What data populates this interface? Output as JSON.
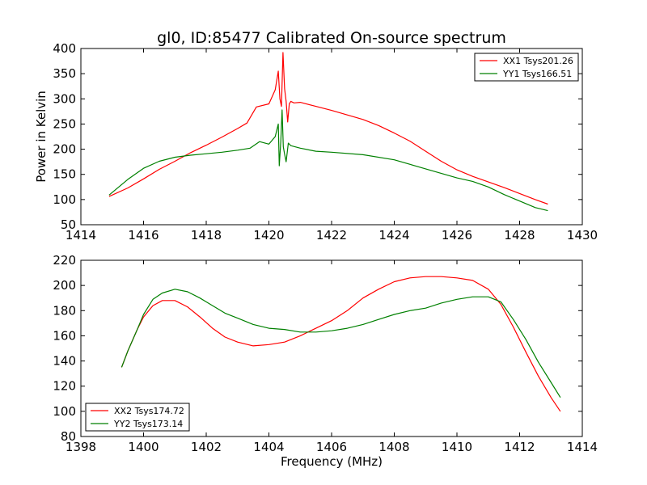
{
  "chart_data": [
    {
      "type": "line",
      "title": "gl0, ID:85477 Calibrated On-source spectrum",
      "xlabel": "",
      "ylabel": "Power in Kelvin",
      "xlim": [
        1414,
        1430
      ],
      "ylim": [
        50,
        400
      ],
      "xticks": [
        1414,
        1416,
        1418,
        1420,
        1422,
        1424,
        1426,
        1428,
        1430
      ],
      "yticks": [
        50,
        100,
        150,
        200,
        250,
        300,
        350,
        400
      ],
      "legend_position": "top-right",
      "series": [
        {
          "name": "XX1 Tsys201.26",
          "color": "#ff0000",
          "x": [
            1414.9,
            1415.5,
            1416.0,
            1416.5,
            1417.0,
            1417.5,
            1418.0,
            1418.5,
            1419.0,
            1419.3,
            1419.6,
            1420.0,
            1420.2,
            1420.3,
            1420.35,
            1420.4,
            1420.45,
            1420.5,
            1420.55,
            1420.6,
            1420.65,
            1420.7,
            1420.8,
            1421.0,
            1421.5,
            1422.0,
            1422.5,
            1423.0,
            1423.5,
            1424.0,
            1424.5,
            1425.0,
            1425.5,
            1426.0,
            1426.5,
            1427.0,
            1427.5,
            1428.0,
            1428.5,
            1428.9
          ],
          "y": [
            106,
            123,
            141,
            160,
            176,
            193,
            208,
            224,
            241,
            252,
            284,
            290,
            318,
            355,
            300,
            285,
            392,
            320,
            295,
            254,
            290,
            295,
            292,
            293,
            285,
            277,
            268,
            259,
            247,
            232,
            216,
            196,
            176,
            159,
            146,
            135,
            124,
            112,
            100,
            91
          ]
        },
        {
          "name": "YY1 Tsys166.51",
          "color": "#008000",
          "x": [
            1414.9,
            1415.5,
            1416.0,
            1416.5,
            1417.0,
            1417.5,
            1418.0,
            1418.5,
            1419.0,
            1419.4,
            1419.7,
            1420.0,
            1420.2,
            1420.3,
            1420.33,
            1420.38,
            1420.42,
            1420.46,
            1420.5,
            1420.55,
            1420.62,
            1420.7,
            1421.0,
            1421.5,
            1422.0,
            1423.0,
            1424.0,
            1425.0,
            1426.0,
            1426.5,
            1427.0,
            1427.5,
            1428.0,
            1428.5,
            1428.9
          ],
          "y": [
            109,
            140,
            162,
            176,
            184,
            188,
            191,
            194,
            198,
            202,
            215,
            210,
            225,
            250,
            167,
            215,
            278,
            205,
            190,
            175,
            212,
            207,
            202,
            196,
            194,
            189,
            179,
            161,
            143,
            136,
            125,
            110,
            97,
            84,
            78
          ]
        }
      ]
    },
    {
      "type": "line",
      "title": "",
      "xlabel": "Frequency (MHz)",
      "ylabel": "",
      "xlim": [
        1398,
        1414
      ],
      "ylim": [
        80,
        220
      ],
      "xticks": [
        1398,
        1400,
        1402,
        1404,
        1406,
        1408,
        1410,
        1412,
        1414
      ],
      "yticks": [
        80,
        100,
        120,
        140,
        160,
        180,
        200,
        220
      ],
      "legend_position": "bottom-left",
      "series": [
        {
          "name": "XX2 Tsys174.72",
          "color": "#ff0000",
          "x": [
            1399.3,
            1399.5,
            1399.8,
            1400.0,
            1400.3,
            1400.6,
            1401.0,
            1401.4,
            1401.8,
            1402.2,
            1402.6,
            1403.0,
            1403.5,
            1404.0,
            1404.5,
            1405.0,
            1405.5,
            1406.0,
            1406.5,
            1407.0,
            1407.5,
            1408.0,
            1408.5,
            1409.0,
            1409.5,
            1410.0,
            1410.5,
            1411.0,
            1411.4,
            1411.8,
            1412.2,
            1412.6,
            1413.0,
            1413.3
          ],
          "y": [
            135,
            148,
            165,
            175,
            184,
            188,
            188,
            183,
            175,
            166,
            159,
            155,
            152,
            153,
            155,
            160,
            166,
            172,
            180,
            190,
            197,
            203,
            206,
            207,
            207,
            206,
            204,
            197,
            185,
            167,
            147,
            128,
            111,
            100
          ]
        },
        {
          "name": "YY2 Tsys173.14",
          "color": "#008000",
          "x": [
            1399.3,
            1399.5,
            1399.8,
            1400.0,
            1400.3,
            1400.6,
            1401.0,
            1401.4,
            1401.8,
            1402.2,
            1402.6,
            1403.0,
            1403.5,
            1404.0,
            1404.5,
            1405.0,
            1405.5,
            1406.0,
            1406.5,
            1407.0,
            1407.5,
            1408.0,
            1408.5,
            1409.0,
            1409.5,
            1410.0,
            1410.5,
            1411.0,
            1411.4,
            1411.8,
            1412.2,
            1412.6,
            1413.0,
            1413.3
          ],
          "y": [
            135,
            148,
            165,
            177,
            189,
            194,
            197,
            195,
            190,
            184,
            178,
            174,
            169,
            166,
            165,
            163,
            163,
            164,
            166,
            169,
            173,
            177,
            180,
            182,
            186,
            189,
            191,
            191,
            187,
            173,
            157,
            139,
            123,
            111
          ]
        }
      ]
    }
  ]
}
